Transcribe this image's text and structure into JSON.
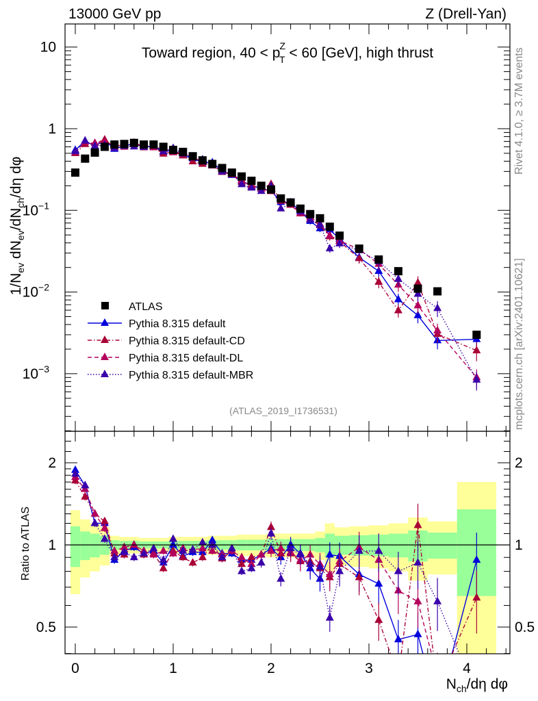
{
  "chart_data": {
    "type": "line",
    "header_left": "13000 GeV pp",
    "header_right": "Z (Drell-Yan)",
    "title": {
      "pre": "Toward region, 40 < p",
      "sup": "Z",
      "sub": "T",
      "post": " < 60 [GeV], high thrust"
    },
    "ylabel": "1/N_ev dN_ev/dN_ch/dη dφ",
    "ylabel_parts": {
      "a": "1/N",
      "a_sub": "ev",
      "b": " dN",
      "b_sub": "ev",
      "c": "/dN",
      "c_sub": "ch",
      "d": "/dη dφ"
    },
    "xlabel": "N_ch/dη dφ",
    "xlabel_parts": {
      "a": "N",
      "a_sub": "ch",
      "b": "/dη dφ"
    },
    "ratio_ylabel": "Ratio to ATLAS",
    "side_text_top": "Rivet 4.1.0, ≥ 3.7M events",
    "side_text_bottom": "mcplots.cern.ch [arXiv:2401.10621]",
    "analysis_id": "(ATLAS_2019_I1736531)",
    "xlim": [
      -0.1,
      4.45
    ],
    "ylim": [
      0.0002,
      19
    ],
    "yscale": "log",
    "ratio_ylim": [
      0.4,
      2.6
    ],
    "x_ticks": [
      "0",
      "1",
      "2",
      "3",
      "4"
    ],
    "y_ticks": [
      {
        "v": 10,
        "label": "10"
      },
      {
        "v": 1,
        "label": "1"
      },
      {
        "v": 0.1,
        "label": "10",
        "exp": "−1"
      },
      {
        "v": 0.01,
        "label": "10",
        "exp": "−2"
      },
      {
        "v": 0.001,
        "label": "10",
        "exp": "−3"
      }
    ],
    "ratio_ticks": [
      {
        "v": 2,
        "label": "2"
      },
      {
        "v": 1,
        "label": "1"
      },
      {
        "v": 0.5,
        "label": "0.5"
      }
    ],
    "legend_position": "bottom-left",
    "x": [
      0,
      0.1,
      0.2,
      0.3,
      0.4,
      0.5,
      0.6,
      0.7,
      0.8,
      0.9,
      1.0,
      1.1,
      1.2,
      1.3,
      1.4,
      1.5,
      1.6,
      1.7,
      1.8,
      1.9,
      2.0,
      2.1,
      2.2,
      2.3,
      2.4,
      2.5,
      2.6,
      2.7,
      2.9,
      3.1,
      3.3,
      3.5,
      3.7,
      4.1
    ],
    "data": {
      "name": "ATLAS",
      "color": "#000000",
      "values": [
        0.29,
        0.43,
        0.51,
        0.6,
        0.64,
        0.65,
        0.67,
        0.64,
        0.64,
        0.6,
        0.55,
        0.52,
        0.46,
        0.41,
        0.37,
        0.33,
        0.29,
        0.26,
        0.23,
        0.2,
        0.18,
        0.14,
        0.125,
        0.105,
        0.09,
        0.08,
        0.063,
        0.049,
        0.034,
        0.025,
        0.018,
        0.011,
        0.0102,
        0.003
      ],
      "rel_err": [
        0.17,
        0.12,
        0.1,
        0.08,
        0.04,
        0.035,
        0.035,
        0.03,
        0.03,
        0.03,
        0.035,
        0.035,
        0.035,
        0.035,
        0.04,
        0.04,
        0.04,
        0.045,
        0.045,
        0.045,
        0.05,
        0.05,
        0.05,
        0.05,
        0.05,
        0.06,
        0.1,
        0.08,
        0.085,
        0.09,
        0.1,
        0.13,
        0.11,
        0.35
      ]
    },
    "band_colors": {
      "inner": "#99ff99",
      "outer": "#ffff99"
    },
    "series": [
      {
        "name": "Pythia 8.315 default",
        "color": "#0000dd",
        "dash": "",
        "ratio": [
          1.88,
          1.65,
          1.2,
          1.2,
          0.88,
          0.95,
          0.98,
          0.93,
          0.95,
          0.86,
          1.0,
          0.91,
          0.94,
          0.94,
          1.04,
          0.93,
          0.93,
          0.88,
          0.88,
          0.92,
          0.97,
          0.9,
          1.0,
          0.93,
          0.82,
          0.75,
          0.92,
          0.91,
          0.78,
          0.72,
          0.45,
          0.47,
          0.25,
          0.88
        ]
      },
      {
        "name": "Pythia 8.315 default-CD",
        "color": "#aa0036",
        "dash": "6,3,1.5,3",
        "ratio": [
          1.72,
          1.5,
          1.3,
          1.22,
          0.93,
          0.92,
          1.0,
          0.92,
          0.93,
          0.82,
          0.95,
          0.9,
          0.86,
          0.9,
          1.0,
          0.89,
          0.95,
          0.85,
          0.9,
          0.92,
          1.16,
          0.93,
          0.93,
          0.87,
          0.87,
          0.82,
          0.76,
          0.85,
          0.76,
          0.53,
          0.33,
          1.18,
          0.3,
          0.64
        ]
      },
      {
        "name": "Pythia 8.315 default-DL",
        "color": "#b3005c",
        "dash": "6,4",
        "ratio": [
          1.77,
          1.6,
          1.3,
          1.15,
          0.95,
          0.98,
          1.0,
          0.95,
          0.92,
          0.95,
          0.93,
          0.97,
          0.96,
          0.97,
          0.95,
          0.92,
          0.95,
          0.9,
          0.85,
          0.92,
          0.95,
          0.97,
          0.94,
          0.88,
          0.92,
          0.85,
          0.78,
          0.87,
          0.98,
          0.88,
          0.68,
          0.62,
          0.33,
          0.3
        ]
      },
      {
        "name": "Pythia 8.315 default-MBR",
        "color": "#3a00aa",
        "dash": "1.5,2.5",
        "ratio": [
          1.82,
          1.65,
          1.2,
          1.05,
          0.9,
          0.94,
          0.9,
          0.93,
          0.97,
          0.88,
          1.05,
          0.95,
          0.96,
          1.02,
          1.0,
          0.9,
          0.97,
          0.8,
          0.82,
          0.86,
          1.1,
          0.75,
          0.97,
          0.92,
          0.85,
          0.83,
          0.54,
          0.8,
          0.95,
          0.95,
          0.8,
          0.86,
          0.62,
          0.28
        ]
      }
    ]
  }
}
